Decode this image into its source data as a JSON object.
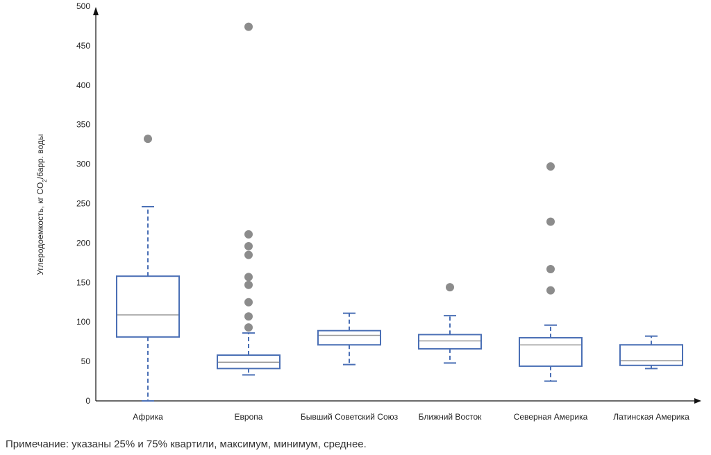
{
  "chart_data": {
    "type": "boxplot",
    "ylabel_main": "Углеродоемкость, кг CO",
    "ylabel_sub": "2",
    "ylabel_tail": "/барр. воды",
    "ylim": [
      0,
      500
    ],
    "yticks": [
      0,
      50,
      100,
      150,
      200,
      250,
      300,
      350,
      400,
      450,
      500
    ],
    "grid": false,
    "categories": [
      "Африка",
      "Европа",
      "Бывший Советский Союз",
      "Ближний Восток",
      "Северная Америка",
      "Латинская Америка"
    ],
    "series": [
      {
        "category": "Африка",
        "min": 0,
        "q1": 81,
        "median": 109,
        "q3": 158,
        "max": 246,
        "outliers": [
          332
        ]
      },
      {
        "category": "Европа",
        "min": 33,
        "q1": 41,
        "median": 49,
        "q3": 58,
        "max": 86,
        "outliers": [
          93,
          107,
          125,
          147,
          157,
          185,
          196,
          211,
          474
        ]
      },
      {
        "category": "Бывший Советский Союз",
        "min": 46,
        "q1": 71,
        "median": 83,
        "q3": 89,
        "max": 111,
        "outliers": []
      },
      {
        "category": "Ближний Восток",
        "min": 48,
        "q1": 66,
        "median": 76,
        "q3": 84,
        "max": 108,
        "outliers": [
          144
        ]
      },
      {
        "category": "Северная Америка",
        "min": 25,
        "q1": 44,
        "median": 71,
        "q3": 80,
        "max": 96,
        "outliers": [
          140,
          167,
          227,
          297
        ]
      },
      {
        "category": "Латинская Америка",
        "min": 41,
        "q1": 45,
        "median": 51,
        "q3": 71,
        "max": 82,
        "outliers": []
      }
    ],
    "colors": {
      "box": "#4a6fb5",
      "median": "#999999",
      "outlier": "#8c8c8c",
      "axis": "#111111"
    }
  },
  "note": "Примечание: указаны 25% и 75% квартили, максимум, минимум, среднее."
}
